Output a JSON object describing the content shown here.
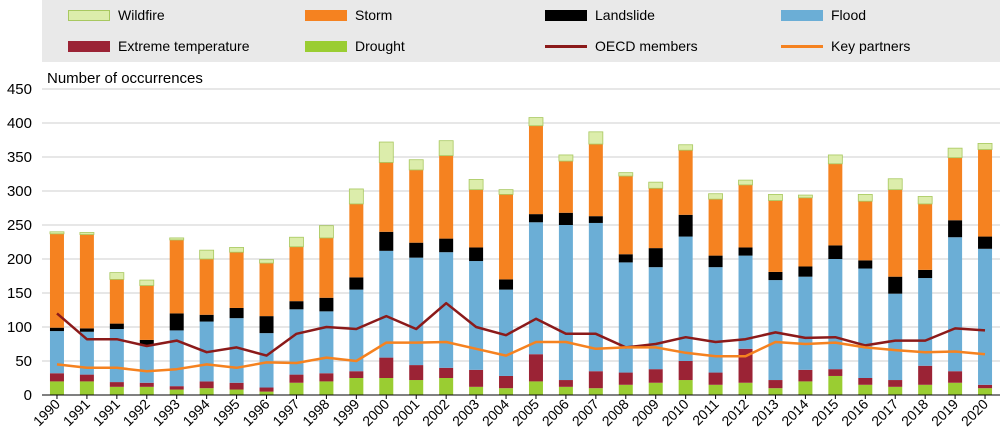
{
  "chart_data": {
    "type": "bar",
    "ylabel": "Number of occurrences",
    "ylim": [
      0,
      450
    ],
    "yticks": [
      0,
      50,
      100,
      150,
      200,
      250,
      300,
      350,
      400,
      450
    ],
    "grid": true,
    "legend_position": "top",
    "categories": [
      "1990",
      "1991",
      "1991",
      "1992",
      "1993",
      "1994",
      "1995",
      "1996",
      "1997",
      "1998",
      "1999",
      "2000",
      "2001",
      "2002",
      "2003",
      "2004",
      "2005",
      "2006",
      "2007",
      "2008",
      "2009",
      "2010",
      "2011",
      "2012",
      "2013",
      "2014",
      "2015",
      "2016",
      "2017",
      "2018",
      "2019",
      "2020"
    ],
    "series": [
      {
        "name": "Drought",
        "type": "bar",
        "color": "#9acd32",
        "values": [
          20,
          20,
          12,
          12,
          8,
          10,
          8,
          5,
          18,
          20,
          25,
          25,
          22,
          25,
          12,
          10,
          20,
          12,
          10,
          15,
          18,
          22,
          15,
          18,
          10,
          20,
          28,
          15,
          12,
          15,
          18,
          10
        ]
      },
      {
        "name": "Extreme temperature",
        "type": "bar",
        "color": "#9b2335",
        "values": [
          12,
          10,
          7,
          6,
          5,
          10,
          10,
          6,
          12,
          12,
          10,
          30,
          22,
          15,
          25,
          18,
          40,
          10,
          25,
          18,
          20,
          28,
          18,
          50,
          12,
          17,
          10,
          10,
          10,
          28,
          17,
          5
        ]
      },
      {
        "name": "Flood",
        "type": "bar",
        "color": "#6baed6",
        "values": [
          62,
          63,
          78,
          55,
          82,
          88,
          95,
          80,
          96,
          91,
          120,
          157,
          158,
          170,
          160,
          127,
          194,
          228,
          218,
          162,
          150,
          183,
          155,
          137,
          147,
          137,
          162,
          161,
          127,
          129,
          197,
          200
        ]
      },
      {
        "name": "Landslide",
        "type": "bar",
        "color": "#000000",
        "values": [
          5,
          5,
          8,
          8,
          25,
          10,
          15,
          25,
          12,
          20,
          18,
          28,
          22,
          20,
          20,
          15,
          12,
          18,
          10,
          12,
          28,
          32,
          17,
          12,
          12,
          15,
          20,
          12,
          25,
          12,
          25,
          18
        ]
      },
      {
        "name": "Storm",
        "type": "bar",
        "color": "#f58220",
        "values": [
          138,
          138,
          65,
          80,
          108,
          82,
          82,
          78,
          80,
          88,
          108,
          102,
          107,
          122,
          85,
          125,
          130,
          76,
          106,
          115,
          88,
          95,
          83,
          92,
          105,
          101,
          120,
          87,
          128,
          97,
          92,
          128
        ]
      },
      {
        "name": "Wildfire",
        "type": "bar",
        "color": "#dcedab",
        "values": [
          3,
          3,
          10,
          8,
          3,
          13,
          7,
          5,
          14,
          18,
          22,
          30,
          15,
          22,
          15,
          7,
          12,
          9,
          18,
          5,
          9,
          8,
          8,
          7,
          9,
          4,
          13,
          10,
          16,
          11,
          14,
          9
        ]
      },
      {
        "name": "OECD members",
        "type": "line",
        "color": "#8b1a1a",
        "values": [
          120,
          82,
          82,
          72,
          80,
          63,
          70,
          58,
          90,
          100,
          97,
          116,
          97,
          135,
          100,
          88,
          112,
          90,
          90,
          70,
          75,
          85,
          78,
          82,
          92,
          84,
          85,
          73,
          80,
          80,
          98,
          95
        ]
      },
      {
        "name": "Key partners",
        "type": "line",
        "color": "#f58220",
        "values": [
          45,
          40,
          40,
          35,
          38,
          45,
          40,
          48,
          47,
          55,
          50,
          77,
          77,
          78,
          68,
          58,
          78,
          78,
          68,
          70,
          70,
          62,
          57,
          57,
          78,
          75,
          77,
          70,
          66,
          63,
          64,
          60
        ]
      }
    ]
  },
  "legend": {
    "items": [
      {
        "label": "Wildfire",
        "kind": "bar",
        "color": "#dcedab"
      },
      {
        "label": "Storm",
        "kind": "bar",
        "color": "#f58220"
      },
      {
        "label": "Landslide",
        "kind": "bar",
        "color": "#000000"
      },
      {
        "label": "Flood",
        "kind": "bar",
        "color": "#6baed6"
      },
      {
        "label": "Extreme temperature",
        "kind": "bar",
        "color": "#9b2335"
      },
      {
        "label": "Drought",
        "kind": "bar",
        "color": "#9acd32"
      },
      {
        "label": "OECD members",
        "kind": "line",
        "color": "#8b1a1a"
      },
      {
        "label": "Key partners",
        "kind": "line",
        "color": "#f58220"
      }
    ]
  }
}
